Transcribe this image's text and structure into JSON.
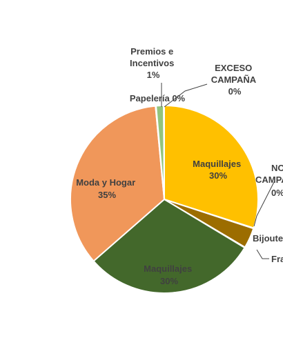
{
  "chart_data": {
    "type": "pie",
    "slices": [
      {
        "label": "Maquillajes",
        "pct_text": "30%",
        "value": 30,
        "color": "#FFC000"
      },
      {
        "label": "NO CAMPAÑA",
        "pct_text": "0%",
        "value": 0.1,
        "color": "#EDA530"
      },
      {
        "label": "Bijouterie",
        "pct_text": "",
        "value": 3.5,
        "color": "#9C6D00"
      },
      {
        "label": "Fragancias",
        "pct_text": "",
        "value": 0.1,
        "color": "#D9D9D9"
      },
      {
        "label": "Maquillajes",
        "pct_text": "30%",
        "value": 30,
        "color": "#43682B"
      },
      {
        "label": "Moda y Hogar",
        "pct_text": "35%",
        "value": 35,
        "color": "#F0975A"
      },
      {
        "label": "Papelería",
        "pct_text": "0%",
        "value": 0.1,
        "color": "#5B9BD5"
      },
      {
        "label": "Premios e Incentivos",
        "pct_text": "1%",
        "value": 1.3,
        "color": "#92C47D"
      },
      {
        "label": "EXCESO CAMPAÑA",
        "pct_text": "0%",
        "value": 0.1,
        "color": "#A5A5A5"
      }
    ],
    "labels": {
      "maquillajes_1": [
        "Maquillajes",
        "30%"
      ],
      "no_campana": [
        "NO",
        "CAMPAÑA",
        "0%"
      ],
      "bijouterie": "Bijoute",
      "fragancias": "Fra",
      "maquillajes_2": [
        "Maquillajes",
        "30%"
      ],
      "moda_hogar": [
        "Moda y Hogar",
        "35%"
      ],
      "papeleria": "Papelería 0%",
      "premios": [
        "Premios e",
        "Incentivos",
        "1%"
      ],
      "exceso": [
        "EXCESO",
        "CAMPAÑA",
        "0%"
      ]
    },
    "legend": "none",
    "start_angle_deg": 0
  }
}
